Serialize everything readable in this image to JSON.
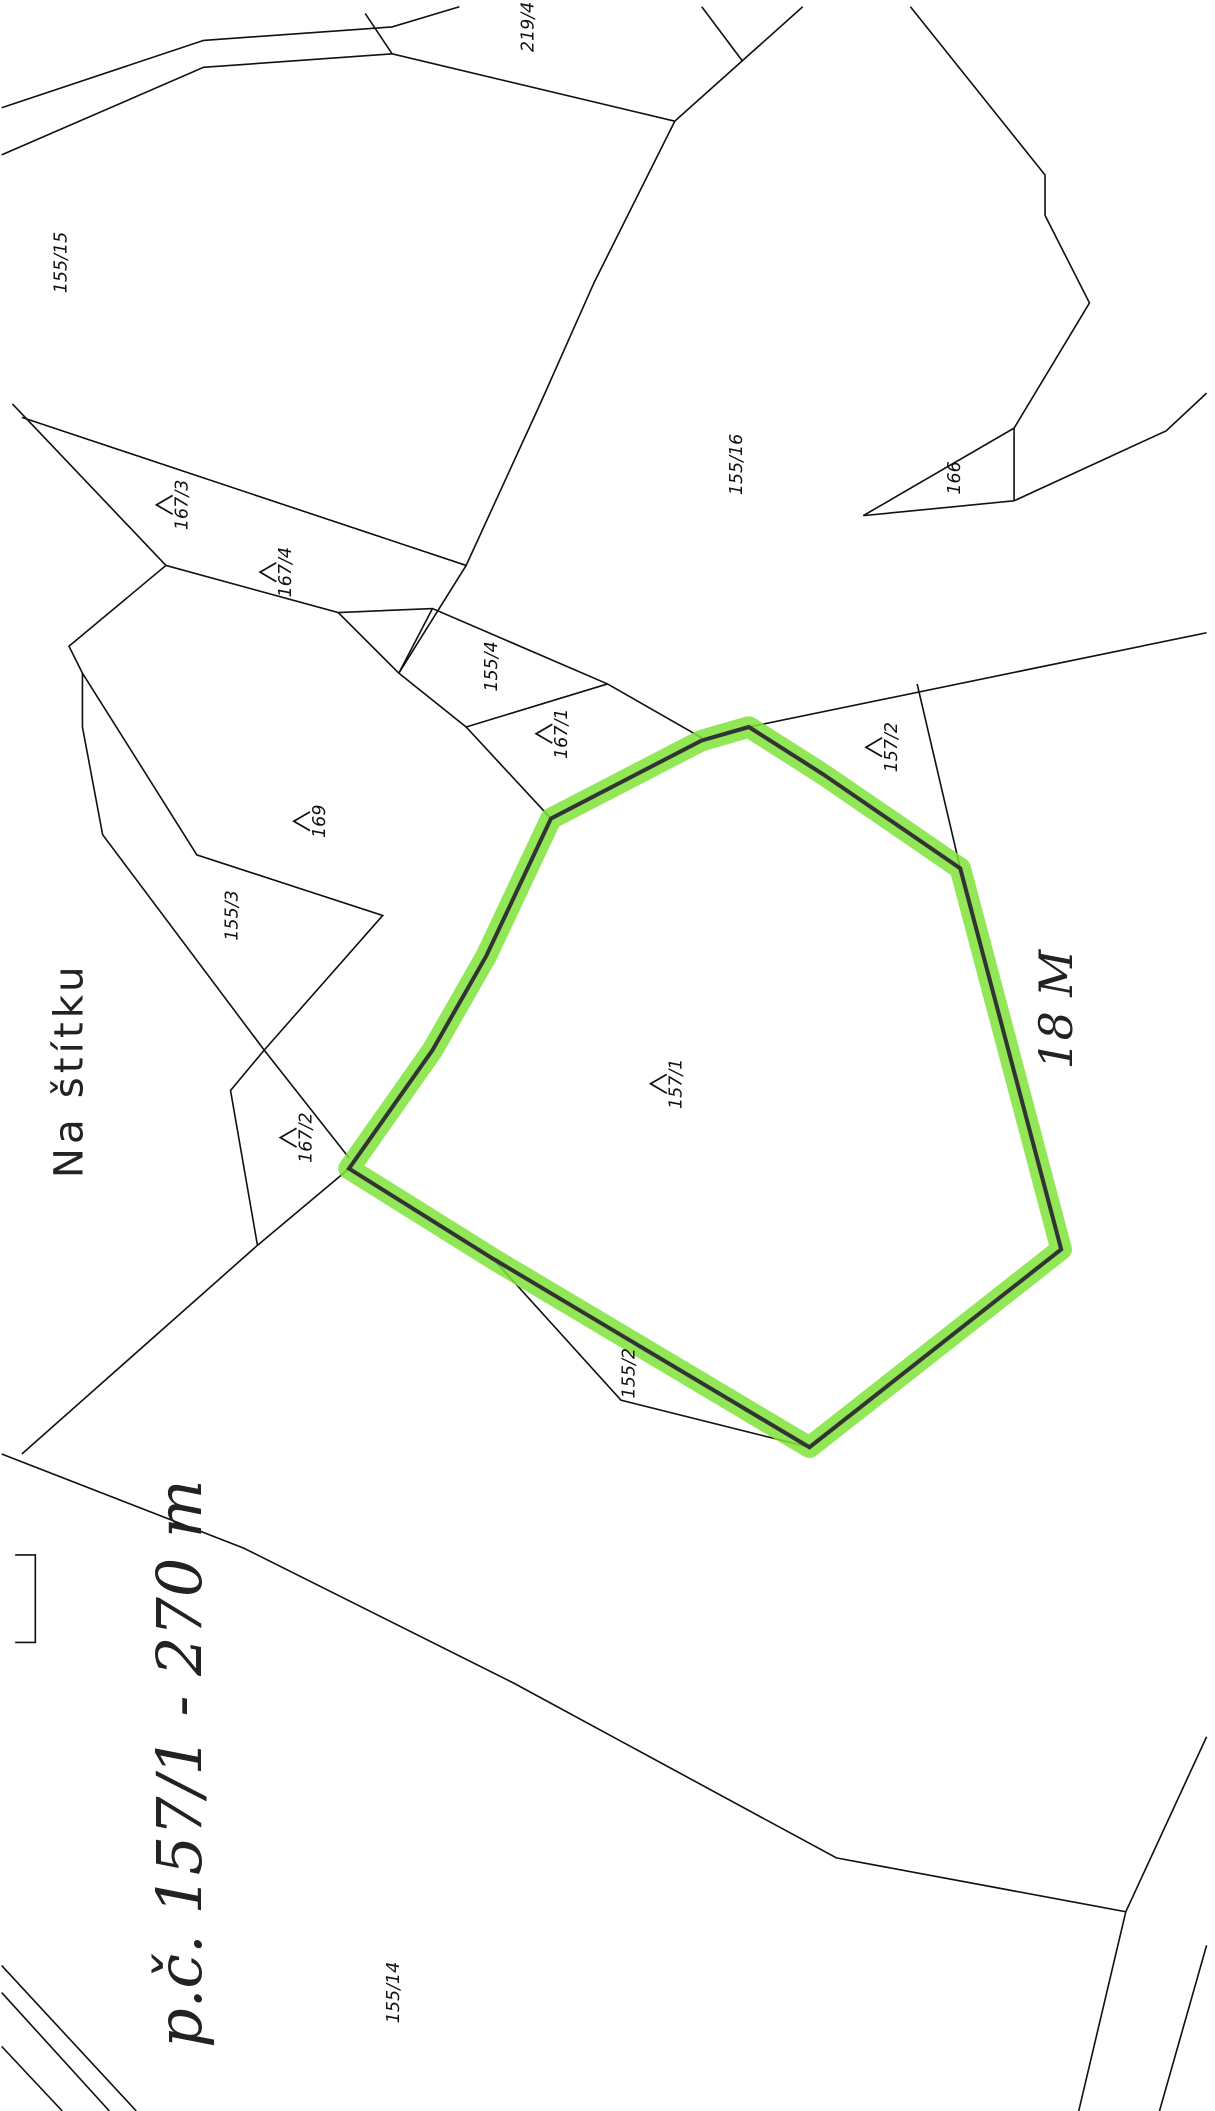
{
  "map": {
    "title": "Na štítku",
    "note": "p.č. 157/1 - 270 m",
    "dimension": "18 M",
    "parcels": [
      "219/4",
      "155/15",
      "155/16",
      "166",
      "167/3",
      "167/4",
      "155/4",
      "167/1",
      "157/2",
      "169",
      "155/3",
      "167/2",
      "157/1",
      "155/2",
      "155/14"
    ]
  }
}
